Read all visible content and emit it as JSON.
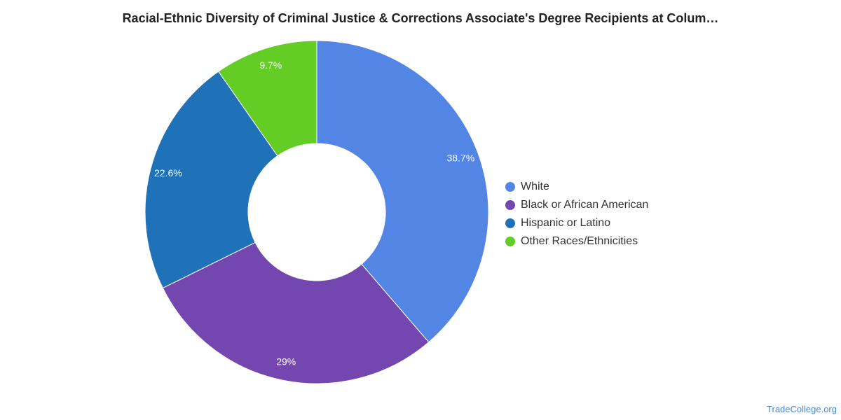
{
  "chart_data": {
    "type": "pie",
    "title": "Racial-Ethnic Diversity of Criminal Justice & Corrections Associate's Degree Recipients at Colum…",
    "donut": true,
    "legend_position": "right",
    "categories": [
      "White",
      "Black or African American",
      "Hispanic or Latino",
      "Other Races/Ethnicities"
    ],
    "values": [
      38.7,
      29,
      22.6,
      9.7
    ],
    "value_labels": [
      "38.7%",
      "29%",
      "22.6%",
      "9.7%"
    ],
    "colors": [
      "#5386e4",
      "#7447b0",
      "#1f72b8",
      "#63cc25"
    ]
  },
  "source": {
    "label": "TradeCollege.org"
  }
}
